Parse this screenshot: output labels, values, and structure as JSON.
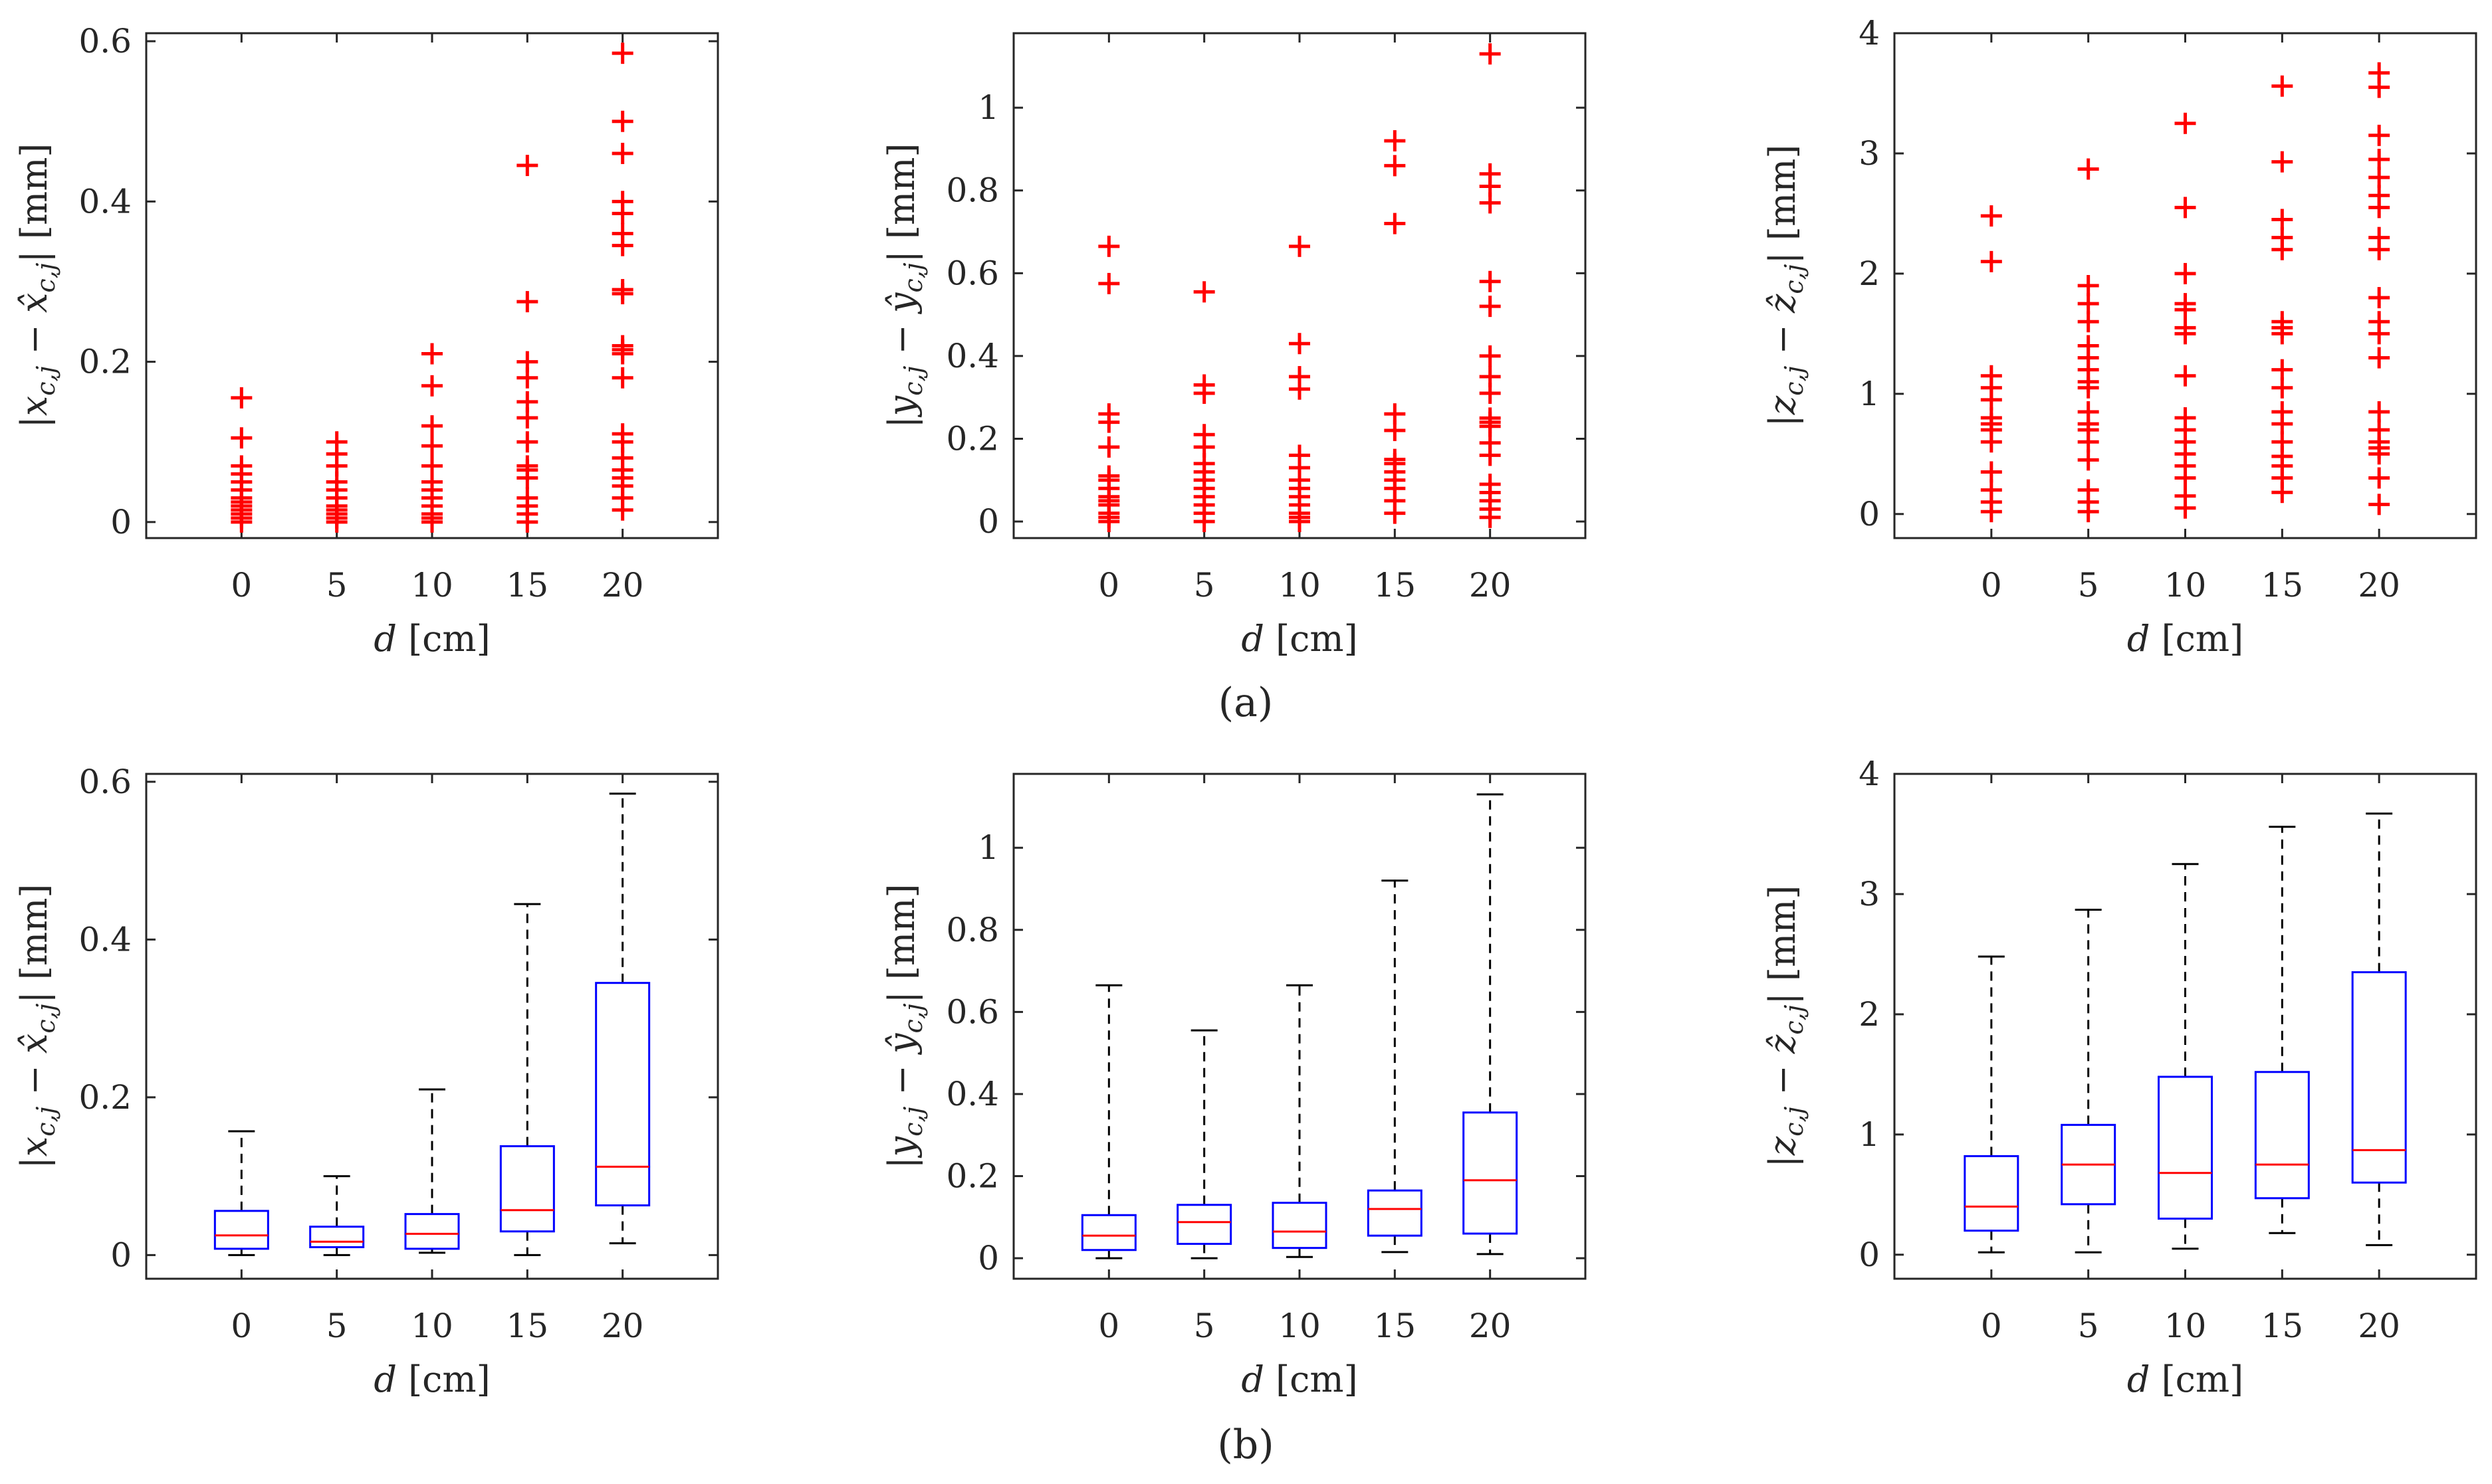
{
  "figure": {
    "label_a": "(a)",
    "label_b": "(b)",
    "colors": {
      "outlier": "#ff0000",
      "box": "#0000ff",
      "median": "#ff0000",
      "whisker": "#000000",
      "axis": "#262626"
    }
  },
  "chart_data": [
    {
      "type": "scatter",
      "panel": "a",
      "title": "",
      "xlabel": "d [cm]",
      "ylabel": "|x_{c,j} − x̂_{c,j}| [mm]",
      "xlabel_var": "d",
      "xlabel_unit": "[cm]",
      "ylabel_main": "x",
      "ylabel_hat": "x̂",
      "ylabel_unit": "[mm]",
      "categories": [
        "0",
        "5",
        "10",
        "15",
        "20"
      ],
      "ylim": [
        -0.02,
        0.61
      ],
      "yticks": [
        0,
        0.2,
        0.4,
        0.6
      ],
      "ytick_labels": [
        "0",
        "0.2",
        "0.4",
        "0.6"
      ],
      "marker": "+",
      "series": [
        {
          "name": "0",
          "values": [
            0.0,
            0.005,
            0.01,
            0.015,
            0.02,
            0.025,
            0.03,
            0.04,
            0.05,
            0.06,
            0.07,
            0.105,
            0.155
          ]
        },
        {
          "name": "5",
          "values": [
            0.0,
            0.005,
            0.01,
            0.015,
            0.02,
            0.03,
            0.04,
            0.05,
            0.07,
            0.085,
            0.1
          ]
        },
        {
          "name": "10",
          "values": [
            0.0,
            0.005,
            0.01,
            0.02,
            0.03,
            0.04,
            0.05,
            0.07,
            0.095,
            0.12,
            0.17,
            0.21
          ]
        },
        {
          "name": "15",
          "values": [
            0.0,
            0.01,
            0.02,
            0.03,
            0.055,
            0.065,
            0.07,
            0.1,
            0.13,
            0.15,
            0.18,
            0.2,
            0.275,
            0.445
          ]
        },
        {
          "name": "20",
          "values": [
            0.015,
            0.03,
            0.045,
            0.055,
            0.065,
            0.08,
            0.1,
            0.11,
            0.18,
            0.21,
            0.215,
            0.22,
            0.285,
            0.29,
            0.345,
            0.36,
            0.385,
            0.4,
            0.46,
            0.5,
            0.585
          ]
        }
      ]
    },
    {
      "type": "scatter",
      "panel": "a",
      "title": "",
      "xlabel": "d [cm]",
      "ylabel": "|y_{c,j} − ŷ_{c,j}| [mm]",
      "xlabel_var": "d",
      "xlabel_unit": "[cm]",
      "ylabel_main": "y",
      "ylabel_hat": "ŷ",
      "ylabel_unit": "[mm]",
      "categories": [
        "0",
        "5",
        "10",
        "15",
        "20"
      ],
      "ylim": [
        -0.04,
        1.18
      ],
      "yticks": [
        0,
        0.2,
        0.4,
        0.6,
        0.8,
        1
      ],
      "ytick_labels": [
        "0",
        "0.2",
        "0.4",
        "0.6",
        "0.8",
        "1"
      ],
      "marker": "+",
      "series": [
        {
          "name": "0",
          "values": [
            0.0,
            0.01,
            0.02,
            0.04,
            0.05,
            0.06,
            0.08,
            0.1,
            0.11,
            0.18,
            0.24,
            0.26,
            0.575,
            0.665
          ]
        },
        {
          "name": "5",
          "values": [
            0.0,
            0.02,
            0.04,
            0.06,
            0.08,
            0.1,
            0.12,
            0.14,
            0.18,
            0.21,
            0.31,
            0.33,
            0.555
          ]
        },
        {
          "name": "10",
          "values": [
            0.0,
            0.01,
            0.02,
            0.04,
            0.06,
            0.08,
            0.1,
            0.13,
            0.16,
            0.32,
            0.35,
            0.43,
            0.665
          ]
        },
        {
          "name": "15",
          "values": [
            0.02,
            0.05,
            0.08,
            0.1,
            0.12,
            0.14,
            0.15,
            0.22,
            0.26,
            0.72,
            0.86,
            0.92
          ]
        },
        {
          "name": "20",
          "values": [
            0.01,
            0.03,
            0.05,
            0.07,
            0.09,
            0.16,
            0.19,
            0.23,
            0.24,
            0.25,
            0.31,
            0.35,
            0.4,
            0.52,
            0.58,
            0.77,
            0.81,
            0.84,
            1.13
          ]
        }
      ]
    },
    {
      "type": "scatter",
      "panel": "a",
      "title": "",
      "xlabel": "d [cm]",
      "ylabel": "|z_{c,j} − ẑ_{c,j}| [mm]",
      "xlabel_var": "d",
      "xlabel_unit": "[cm]",
      "ylabel_main": "z",
      "ylabel_hat": "ẑ",
      "ylabel_unit": "[mm]",
      "categories": [
        "0",
        "5",
        "10",
        "15",
        "20"
      ],
      "ylim": [
        -0.2,
        4.0
      ],
      "yticks": [
        0,
        1,
        2,
        3,
        4
      ],
      "ytick_labels": [
        "0",
        "1",
        "2",
        "3",
        "4"
      ],
      "marker": "+",
      "series": [
        {
          "name": "0",
          "values": [
            0.02,
            0.1,
            0.2,
            0.35,
            0.6,
            0.7,
            0.75,
            0.8,
            0.95,
            1.05,
            1.15,
            2.1,
            2.48
          ]
        },
        {
          "name": "5",
          "values": [
            0.02,
            0.1,
            0.2,
            0.45,
            0.6,
            0.7,
            0.75,
            0.85,
            1.05,
            1.1,
            1.2,
            1.3,
            1.4,
            1.6,
            1.75,
            1.9,
            2.87
          ]
        },
        {
          "name": "10",
          "values": [
            0.05,
            0.15,
            0.3,
            0.4,
            0.5,
            0.6,
            0.7,
            0.8,
            1.15,
            1.5,
            1.55,
            1.7,
            1.75,
            2.0,
            2.55,
            3.25
          ]
        },
        {
          "name": "15",
          "values": [
            0.18,
            0.3,
            0.4,
            0.48,
            0.6,
            0.75,
            0.85,
            1.05,
            1.2,
            1.5,
            1.55,
            1.6,
            2.2,
            2.3,
            2.45,
            2.93,
            3.56
          ]
        },
        {
          "name": "20",
          "values": [
            0.08,
            0.3,
            0.5,
            0.55,
            0.6,
            0.7,
            0.85,
            1.3,
            1.5,
            1.6,
            1.8,
            2.2,
            2.3,
            2.55,
            2.65,
            2.8,
            2.95,
            3.15,
            3.55,
            3.67
          ]
        }
      ]
    },
    {
      "type": "box",
      "panel": "b",
      "title": "",
      "xlabel": "d [cm]",
      "ylabel": "|x_{c,j} − x̂_{c,j}| [mm]",
      "xlabel_var": "d",
      "xlabel_unit": "[cm]",
      "ylabel_main": "x",
      "ylabel_hat": "x̂",
      "ylabel_unit": "[mm]",
      "categories": [
        "0",
        "5",
        "10",
        "15",
        "20"
      ],
      "ylim": [
        -0.03,
        0.61
      ],
      "yticks": [
        0,
        0.2,
        0.4,
        0.6
      ],
      "ytick_labels": [
        "0",
        "0.2",
        "0.4",
        "0.6"
      ],
      "boxes": [
        {
          "name": "0",
          "min": 0.0,
          "q1": 0.008,
          "median": 0.025,
          "q3": 0.056,
          "max": 0.157
        },
        {
          "name": "5",
          "min": 0.0,
          "q1": 0.01,
          "median": 0.017,
          "q3": 0.036,
          "max": 0.1
        },
        {
          "name": "10",
          "min": 0.003,
          "q1": 0.008,
          "median": 0.027,
          "q3": 0.052,
          "max": 0.21
        },
        {
          "name": "15",
          "min": 0.0,
          "q1": 0.03,
          "median": 0.057,
          "q3": 0.138,
          "max": 0.445
        },
        {
          "name": "20",
          "min": 0.015,
          "q1": 0.063,
          "median": 0.112,
          "q3": 0.345,
          "max": 0.585
        }
      ]
    },
    {
      "type": "box",
      "panel": "b",
      "title": "",
      "xlabel": "d [cm]",
      "ylabel": "|y_{c,j} − ŷ_{c,j}| [mm]",
      "xlabel_var": "d",
      "xlabel_unit": "[cm]",
      "ylabel_main": "y",
      "ylabel_hat": "ŷ",
      "ylabel_unit": "[mm]",
      "categories": [
        "0",
        "5",
        "10",
        "15",
        "20"
      ],
      "ylim": [
        -0.05,
        1.18
      ],
      "yticks": [
        0,
        0.2,
        0.4,
        0.6,
        0.8,
        1
      ],
      "ytick_labels": [
        "0",
        "0.2",
        "0.4",
        "0.6",
        "0.8",
        "1"
      ],
      "boxes": [
        {
          "name": "0",
          "min": 0.0,
          "q1": 0.02,
          "median": 0.055,
          "q3": 0.105,
          "max": 0.665
        },
        {
          "name": "5",
          "min": 0.0,
          "q1": 0.035,
          "median": 0.088,
          "q3": 0.13,
          "max": 0.555
        },
        {
          "name": "10",
          "min": 0.003,
          "q1": 0.025,
          "median": 0.065,
          "q3": 0.135,
          "max": 0.665
        },
        {
          "name": "15",
          "min": 0.015,
          "q1": 0.055,
          "median": 0.12,
          "q3": 0.165,
          "max": 0.92
        },
        {
          "name": "20",
          "min": 0.01,
          "q1": 0.06,
          "median": 0.19,
          "q3": 0.355,
          "max": 1.13
        }
      ]
    },
    {
      "type": "box",
      "panel": "b",
      "title": "",
      "xlabel": "d [cm]",
      "ylabel": "|z_{c,j} − ẑ_{c,j}| [mm]",
      "xlabel_var": "d",
      "xlabel_unit": "[cm]",
      "ylabel_main": "z",
      "ylabel_hat": "ẑ",
      "ylabel_unit": "[mm]",
      "categories": [
        "0",
        "5",
        "10",
        "15",
        "20"
      ],
      "ylim": [
        -0.2,
        4.0
      ],
      "yticks": [
        0,
        1,
        2,
        3,
        4
      ],
      "ytick_labels": [
        "0",
        "1",
        "2",
        "3",
        "4"
      ],
      "boxes": [
        {
          "name": "0",
          "min": 0.02,
          "q1": 0.2,
          "median": 0.4,
          "q3": 0.82,
          "max": 2.48
        },
        {
          "name": "5",
          "min": 0.02,
          "q1": 0.42,
          "median": 0.75,
          "q3": 1.08,
          "max": 2.87
        },
        {
          "name": "10",
          "min": 0.05,
          "q1": 0.3,
          "median": 0.68,
          "q3": 1.48,
          "max": 3.25
        },
        {
          "name": "15",
          "min": 0.18,
          "q1": 0.47,
          "median": 0.75,
          "q3": 1.52,
          "max": 3.56
        },
        {
          "name": "20",
          "min": 0.08,
          "q1": 0.6,
          "median": 0.87,
          "q3": 2.35,
          "max": 3.67
        }
      ]
    }
  ]
}
